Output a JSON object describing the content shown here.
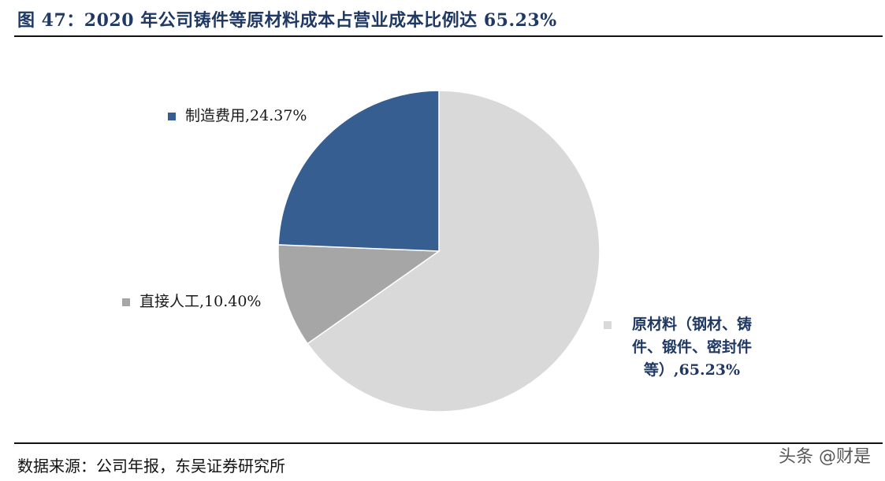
{
  "figure": {
    "title": "图 47：2020 年公司铸件等原材料成本占营业成本比例达 65.23%",
    "source": "数据来源：公司年报，东吴证券研究所",
    "watermark": "头条 @财是"
  },
  "chart_data": {
    "type": "pie",
    "title": "",
    "slices": [
      {
        "label": "原材料（钢材、铸件、锻件、密封件等）,65.23%",
        "value": 65.23,
        "color": "#d9d9d9"
      },
      {
        "label": "直接人工,10.40%",
        "value": 10.4,
        "color": "#a6a6a6"
      },
      {
        "label": "制造费用,24.37%",
        "value": 24.37,
        "color": "#375e91"
      }
    ],
    "start_angle_deg": 0,
    "direction": "clockwise",
    "legend": "labels beside slices"
  }
}
